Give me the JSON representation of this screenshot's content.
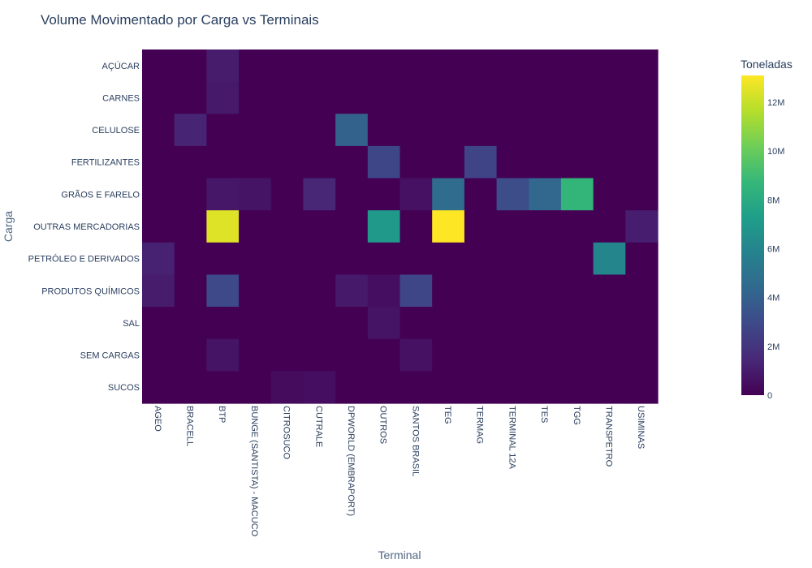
{
  "chart_data": {
    "type": "heatmap",
    "title": "Volume Movimentado por Carga vs Terminais",
    "xlabel": "Terminal",
    "ylabel": "Carga",
    "colorbar_title": "Toneladas",
    "colorscale": "viridis",
    "zlim": [
      0,
      13100000
    ],
    "colorbar_ticks": [
      {
        "value": 0,
        "label": "0"
      },
      {
        "value": 2000000,
        "label": "2M"
      },
      {
        "value": 4000000,
        "label": "4M"
      },
      {
        "value": 6000000,
        "label": "6M"
      },
      {
        "value": 8000000,
        "label": "8M"
      },
      {
        "value": 10000000,
        "label": "10M"
      },
      {
        "value": 12000000,
        "label": "12M"
      }
    ],
    "x": [
      "AGEO",
      "BRACELL",
      "BTP",
      "BUNGE (SANTISTA) - MACUCO",
      "CITROSUCO",
      "CUTRALE",
      "DPWORLD (EMBRAPORT)",
      "OUTROS",
      "SANTOS BRASIL",
      "TEG",
      "TERMAG",
      "TERMINAL 12A",
      "TES",
      "TGG",
      "TRANSPETRO",
      "USIMINAS"
    ],
    "y": [
      "AÇÚCAR",
      "CARNES",
      "CELULOSE",
      "FERTILIZANTES",
      "GRÃOS E FARELO",
      "OUTRAS MERCADORIAS",
      "PETRÓLEO E DERIVADOS",
      "PRODUTOS QUÍMICOS",
      "SAL",
      "SEM CARGAS",
      "SUCOS"
    ],
    "z": [
      [
        0,
        0,
        1000000,
        0,
        0,
        0,
        0,
        0,
        0,
        0,
        0,
        0,
        0,
        0,
        0,
        0
      ],
      [
        0,
        0,
        900000,
        0,
        0,
        0,
        0,
        0,
        0,
        0,
        0,
        0,
        0,
        0,
        0,
        0
      ],
      [
        0,
        1300000,
        0,
        0,
        0,
        0,
        4100000,
        0,
        0,
        0,
        0,
        0,
        0,
        0,
        0,
        0
      ],
      [
        0,
        0,
        0,
        0,
        0,
        0,
        0,
        2800000,
        0,
        0,
        2700000,
        0,
        0,
        0,
        0,
        0
      ],
      [
        0,
        0,
        800000,
        700000,
        0,
        1400000,
        0,
        0,
        600000,
        4600000,
        0,
        3100000,
        4300000,
        8600000,
        0,
        0
      ],
      [
        0,
        0,
        12500000,
        0,
        0,
        0,
        0,
        7000000,
        0,
        13100000,
        0,
        0,
        0,
        0,
        0,
        1100000
      ],
      [
        1200000,
        0,
        0,
        0,
        0,
        0,
        0,
        0,
        0,
        0,
        0,
        0,
        0,
        0,
        6000000,
        0
      ],
      [
        1000000,
        0,
        2900000,
        0,
        0,
        0,
        900000,
        500000,
        2800000,
        0,
        0,
        0,
        0,
        0,
        0,
        0
      ],
      [
        0,
        0,
        0,
        0,
        0,
        0,
        0,
        700000,
        0,
        0,
        0,
        0,
        0,
        0,
        0,
        0
      ],
      [
        0,
        0,
        700000,
        0,
        0,
        0,
        0,
        0,
        600000,
        0,
        0,
        0,
        0,
        0,
        0,
        0
      ],
      [
        0,
        0,
        0,
        0,
        400000,
        500000,
        0,
        0,
        0,
        0,
        0,
        0,
        0,
        0,
        0,
        0
      ]
    ]
  }
}
